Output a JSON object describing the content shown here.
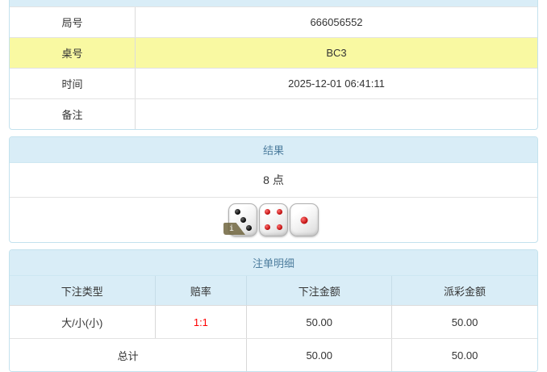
{
  "colors": {
    "panel_header_bg": "#d9edf7",
    "panel_header_text": "#4d7d9e",
    "highlight_row_bg": "#f9f9a2",
    "odds_text": "#ff0000",
    "body_text": "#333333",
    "panel_border": "#c3e2ee",
    "row_divider": "#e3e3e3"
  },
  "info_table": {
    "rows": [
      {
        "label": "局号",
        "value": "666056552"
      },
      {
        "label": "桌号",
        "value": "BC3"
      },
      {
        "label": "时间",
        "value": "2025-12-01 06:41:11"
      },
      {
        "label": "备注",
        "value": ""
      }
    ]
  },
  "result_panel": {
    "title": "结果",
    "points": "8 点",
    "dice": [
      {
        "value": 3,
        "pip_color": "black",
        "has_info_badge": true
      },
      {
        "value": 4,
        "pip_color": "red",
        "has_info_badge": false
      },
      {
        "value": 1,
        "pip_color": "red",
        "has_info_badge": false
      }
    ],
    "info_badge_label": "i"
  },
  "bets_panel": {
    "title": "注单明细",
    "columns": [
      "下注类型",
      "赔率",
      "下注金额",
      "派彩金额"
    ],
    "rows": [
      {
        "bet_type": "大/小(小)",
        "odds": "1:1",
        "bet_amount": "50.00",
        "payout_amount": "50.00"
      }
    ],
    "total": {
      "label": "总计",
      "bet_amount": "50.00",
      "payout_amount": "50.00"
    }
  }
}
